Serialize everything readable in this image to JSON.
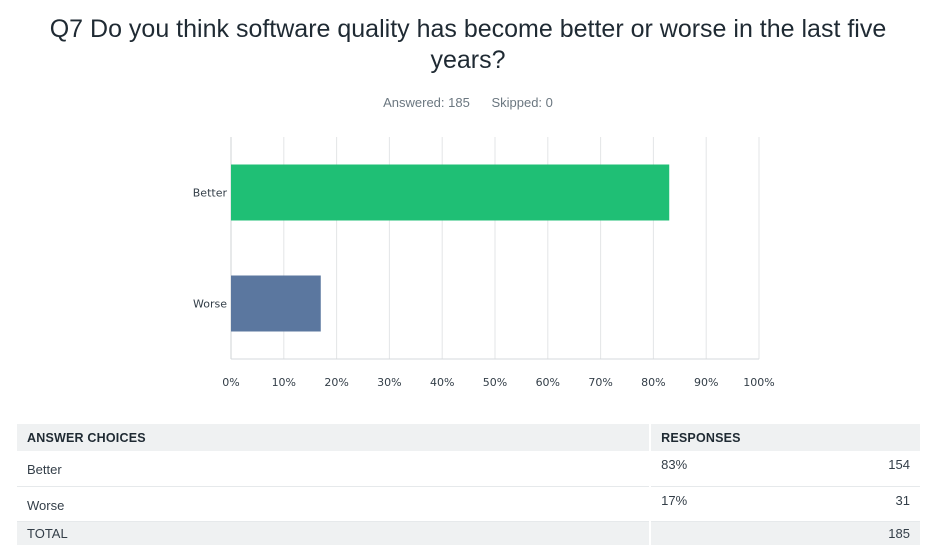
{
  "question": {
    "title": "Q7 Do you think software quality has become better or worse in the last five years?",
    "answered": "Answered: 185",
    "skipped": "Skipped: 0"
  },
  "colors": {
    "bar_better": "#1fbf75",
    "bar_worse": "#5b779f",
    "grid": "#e3e5e7"
  },
  "chart_data": {
    "type": "bar",
    "orientation": "horizontal",
    "categories": [
      "Better",
      "Worse"
    ],
    "values": [
      83,
      17
    ],
    "unit": "%",
    "xlim": [
      0,
      100
    ],
    "xticks": [
      "0%",
      "10%",
      "20%",
      "30%",
      "40%",
      "50%",
      "60%",
      "70%",
      "80%",
      "90%",
      "100%"
    ],
    "grid": true,
    "bar_colors": [
      "#1fbf75",
      "#5b779f"
    ]
  },
  "table": {
    "headers": {
      "choices": "ANSWER CHOICES",
      "responses": "RESPONSES"
    },
    "rows": [
      {
        "choice": "Better",
        "percent": "83%",
        "count": "154"
      },
      {
        "choice": "Worse",
        "percent": "17%",
        "count": "31"
      }
    ],
    "total_label": "TOTAL",
    "total_value": "185"
  }
}
